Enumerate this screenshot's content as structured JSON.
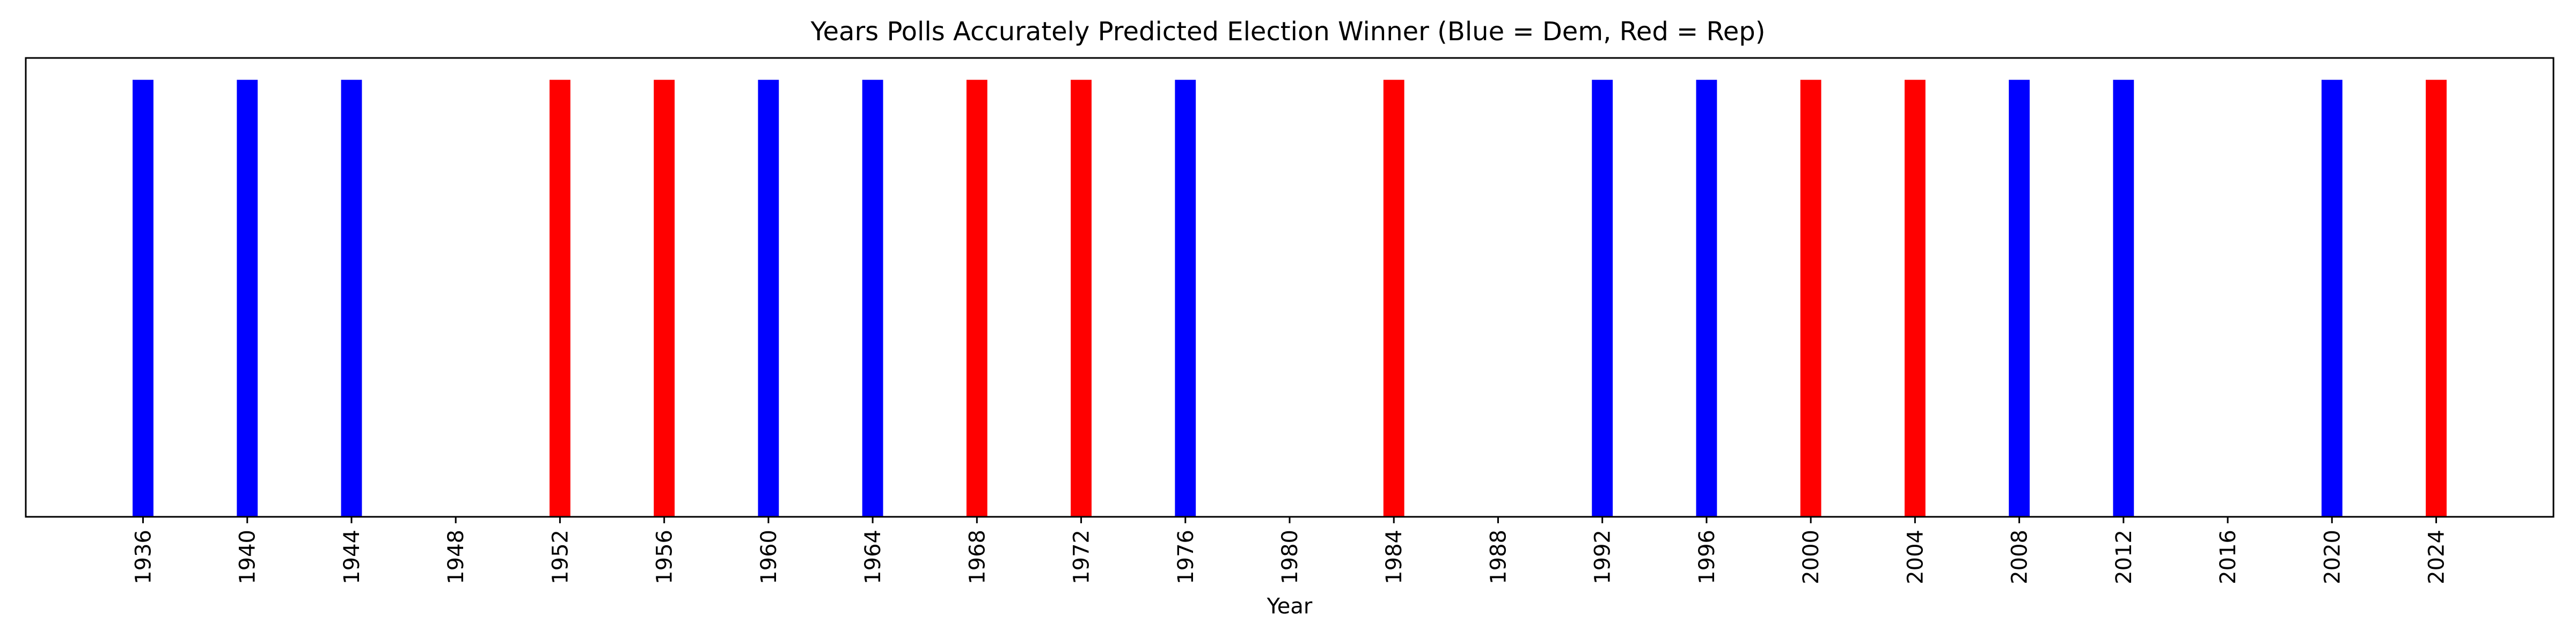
{
  "chart_data": {
    "type": "bar",
    "title": "Years Polls Accurately Predicted Election Winner (Blue = Dem, Red = Rep)",
    "xlabel": "Year",
    "ylabel": "",
    "legend": "none",
    "grid": false,
    "x_ticks": [
      1936,
      1940,
      1944,
      1948,
      1952,
      1956,
      1960,
      1964,
      1968,
      1972,
      1976,
      1980,
      1984,
      1988,
      1992,
      1996,
      2000,
      2004,
      2008,
      2012,
      2016,
      2020,
      2024
    ],
    "xlim": [
      1931.5,
      2028.5
    ],
    "ylim": [
      0,
      1.05
    ],
    "y_ticks_visible": false,
    "colors": {
      "Dem": "#0000ff",
      "Rep": "#ff0000"
    },
    "bars": [
      {
        "year": 1936,
        "value": 1,
        "party": "Dem"
      },
      {
        "year": 1940,
        "value": 1,
        "party": "Dem"
      },
      {
        "year": 1944,
        "value": 1,
        "party": "Dem"
      },
      {
        "year": 1952,
        "value": 1,
        "party": "Rep"
      },
      {
        "year": 1956,
        "value": 1,
        "party": "Rep"
      },
      {
        "year": 1960,
        "value": 1,
        "party": "Dem"
      },
      {
        "year": 1964,
        "value": 1,
        "party": "Dem"
      },
      {
        "year": 1968,
        "value": 1,
        "party": "Rep"
      },
      {
        "year": 1972,
        "value": 1,
        "party": "Rep"
      },
      {
        "year": 1976,
        "value": 1,
        "party": "Dem"
      },
      {
        "year": 1984,
        "value": 1,
        "party": "Rep"
      },
      {
        "year": 1992,
        "value": 1,
        "party": "Dem"
      },
      {
        "year": 1996,
        "value": 1,
        "party": "Dem"
      },
      {
        "year": 2000,
        "value": 1,
        "party": "Rep"
      },
      {
        "year": 2004,
        "value": 1,
        "party": "Rep"
      },
      {
        "year": 2008,
        "value": 1,
        "party": "Dem"
      },
      {
        "year": 2012,
        "value": 1,
        "party": "Dem"
      },
      {
        "year": 2020,
        "value": 1,
        "party": "Dem"
      },
      {
        "year": 2024,
        "value": 1,
        "party": "Rep"
      }
    ]
  }
}
